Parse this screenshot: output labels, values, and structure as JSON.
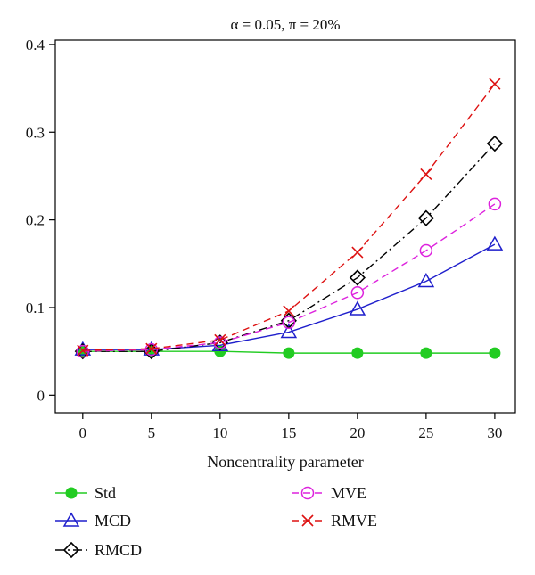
{
  "chart_data": {
    "type": "line",
    "title": "α = 0.05, π = 20%",
    "xlabel": "Noncentrality parameter",
    "ylabel": "",
    "x": [
      0,
      5,
      10,
      15,
      20,
      25,
      30
    ],
    "xlim": [
      -2,
      31.5
    ],
    "ylim": [
      -0.02,
      0.405
    ],
    "xticks": [
      "0",
      "5",
      "10",
      "15",
      "20",
      "25",
      "30"
    ],
    "yticks": [
      "0",
      "0.1",
      "0.2",
      "0.3",
      "0.4"
    ],
    "ytick_values": [
      0,
      0.1,
      0.2,
      0.3,
      0.4
    ],
    "grid": false,
    "legend_position": "bottom",
    "series": [
      {
        "name": "Std",
        "color": "#22cc22",
        "marker": "filled-circle",
        "dash": "solid",
        "values": [
          0.05,
          0.05,
          0.05,
          0.048,
          0.048,
          0.048,
          0.048
        ]
      },
      {
        "name": "MCD",
        "color": "#1f1fcc",
        "marker": "triangle",
        "dash": "solid",
        "values": [
          0.052,
          0.052,
          0.057,
          0.072,
          0.098,
          0.13,
          0.172
        ]
      },
      {
        "name": "RMCD",
        "color": "#000000",
        "marker": "diamond",
        "dash": "dashdot",
        "values": [
          0.05,
          0.05,
          0.06,
          0.085,
          0.134,
          0.202,
          0.287
        ]
      },
      {
        "name": "MVE",
        "color": "#dd22dd",
        "marker": "open-circle",
        "dash": "dashed",
        "values": [
          0.05,
          0.052,
          0.06,
          0.083,
          0.117,
          0.165,
          0.218
        ]
      },
      {
        "name": "RMVE",
        "color": "#dd1111",
        "marker": "cross",
        "dash": "dashed",
        "values": [
          0.051,
          0.053,
          0.063,
          0.096,
          0.163,
          0.252,
          0.355
        ]
      }
    ]
  }
}
